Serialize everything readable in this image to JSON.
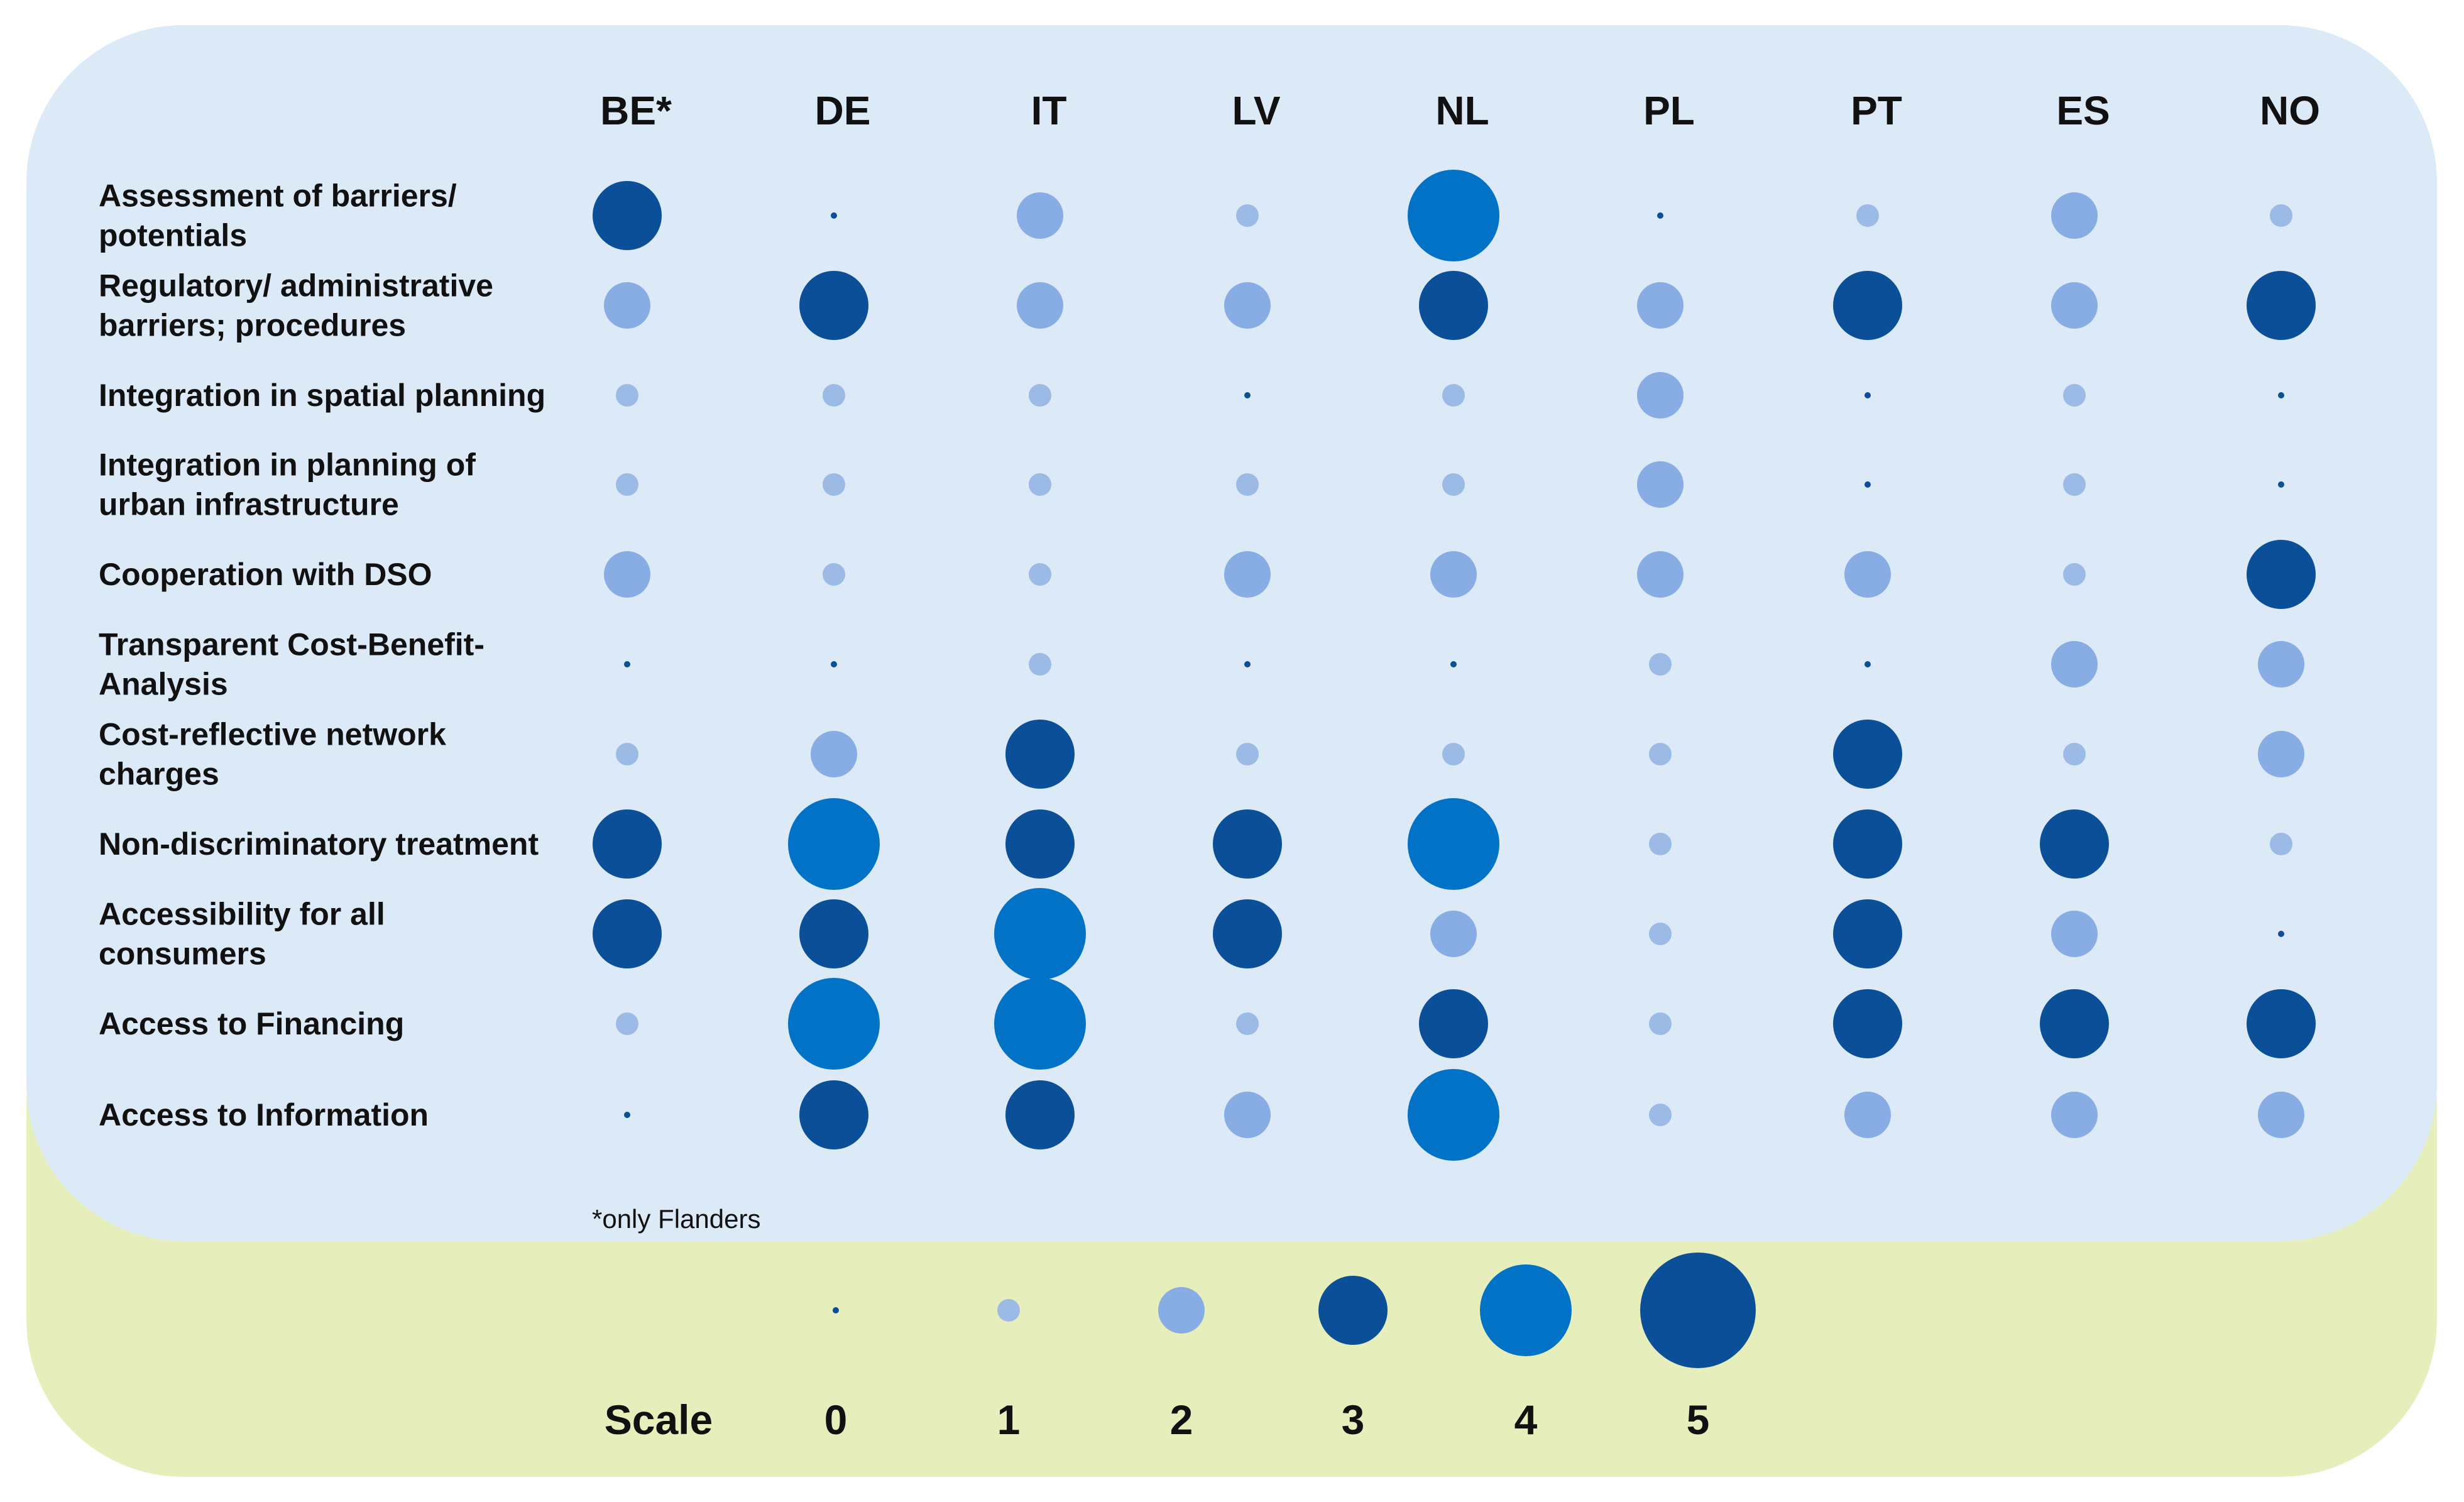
{
  "chart_data": {
    "type": "bubble-matrix",
    "columns": [
      "BE*",
      "DE",
      "IT",
      "LV",
      "NL",
      "PL",
      "PT",
      "ES",
      "NO"
    ],
    "rows": [
      {
        "label": [
          "Assessment of barriers/",
          "potentials"
        ],
        "values": [
          3,
          0,
          2,
          1,
          4,
          0,
          1,
          2,
          1
        ]
      },
      {
        "label": [
          "Regulatory/ administrative",
          "barriers; procedures"
        ],
        "values": [
          2,
          3,
          2,
          2,
          3,
          2,
          3,
          2,
          3
        ]
      },
      {
        "label": [
          "Integration in spatial planning"
        ],
        "values": [
          1,
          1,
          1,
          0,
          1,
          2,
          0,
          1,
          0
        ]
      },
      {
        "label": [
          "Integration in planning of",
          "urban infrastructure"
        ],
        "values": [
          1,
          1,
          1,
          1,
          1,
          2,
          0,
          1,
          0
        ]
      },
      {
        "label": [
          "Cooperation with DSO"
        ],
        "values": [
          2,
          1,
          1,
          2,
          2,
          2,
          2,
          1,
          3
        ]
      },
      {
        "label": [
          "Transparent Cost-Benefit-",
          "Analysis"
        ],
        "values": [
          0,
          0,
          1,
          0,
          0,
          1,
          0,
          2,
          2
        ]
      },
      {
        "label": [
          "Cost-reflective network",
          "charges"
        ],
        "values": [
          1,
          2,
          3,
          1,
          1,
          1,
          3,
          1,
          2
        ]
      },
      {
        "label": [
          "Non-discriminatory treatment"
        ],
        "values": [
          3,
          4,
          3,
          3,
          4,
          1,
          3,
          3,
          1
        ]
      },
      {
        "label": [
          "Accessibility for all",
          "consumers"
        ],
        "values": [
          3,
          3,
          4,
          3,
          2,
          1,
          3,
          2,
          0
        ]
      },
      {
        "label": [
          "Access to Financing"
        ],
        "values": [
          1,
          4,
          4,
          1,
          3,
          1,
          3,
          3,
          3
        ]
      },
      {
        "label": [
          "Access to Information"
        ],
        "values": [
          0,
          3,
          3,
          2,
          4,
          1,
          2,
          2,
          2
        ]
      }
    ],
    "footnote": "*only Flanders",
    "scale": {
      "label": "Scale",
      "levels": [
        0,
        1,
        2,
        3,
        4,
        5
      ]
    },
    "colors": {
      "panel_top": "#dce9f6",
      "panel_bottom": "#e6efbb",
      "level_0": "#0a4f97",
      "level_1": "#9bbbe6",
      "level_2": "#88ace4",
      "level_3": "#0a4f97",
      "level_4": "#0272c6",
      "level_5": "#0a4f97"
    }
  }
}
